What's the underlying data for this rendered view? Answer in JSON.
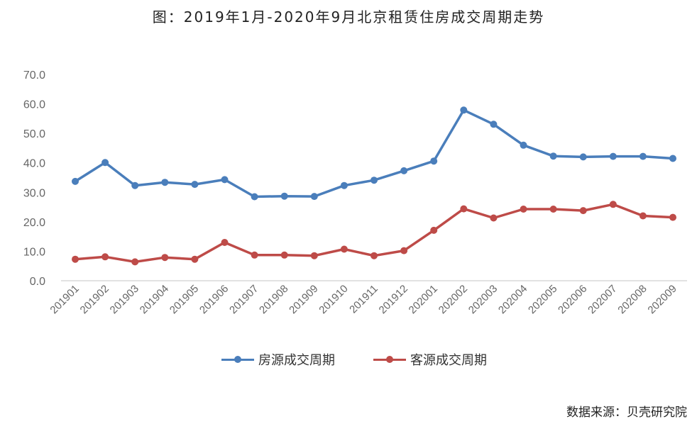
{
  "chart_data": {
    "type": "line",
    "title": "图：2019年1月-2020年9月北京租赁住房成交周期走势",
    "source_note": "数据来源：贝壳研究院",
    "categories": [
      "201901",
      "201902",
      "201903",
      "201904",
      "201905",
      "201906",
      "201907",
      "201908",
      "201909",
      "201910",
      "201911",
      "201912",
      "202001",
      "202002",
      "202003",
      "202004",
      "202005",
      "202006",
      "202007",
      "202008",
      "202009"
    ],
    "ylim": [
      0,
      70
    ],
    "yticks": [
      "0.0",
      "10.0",
      "20.0",
      "30.0",
      "40.0",
      "50.0",
      "60.0",
      "70.0"
    ],
    "grid": false,
    "legend_position": "bottom",
    "series": [
      {
        "name": "房源成交周期",
        "color": "#4a7ebb",
        "values": [
          33.7,
          40.1,
          32.3,
          33.4,
          32.7,
          34.3,
          28.5,
          28.7,
          28.6,
          32.3,
          34.1,
          37.3,
          40.6,
          57.9,
          53.1,
          46.0,
          42.3,
          42.0,
          42.2,
          42.2,
          41.5
        ]
      },
      {
        "name": "客源成交周期",
        "color": "#be4b48",
        "values": [
          7.3,
          8.1,
          6.4,
          7.9,
          7.3,
          13.0,
          8.7,
          8.7,
          8.5,
          10.7,
          8.5,
          10.2,
          17.1,
          24.4,
          21.3,
          24.3,
          24.3,
          23.8,
          25.9,
          22.0,
          21.5
        ]
      }
    ]
  }
}
